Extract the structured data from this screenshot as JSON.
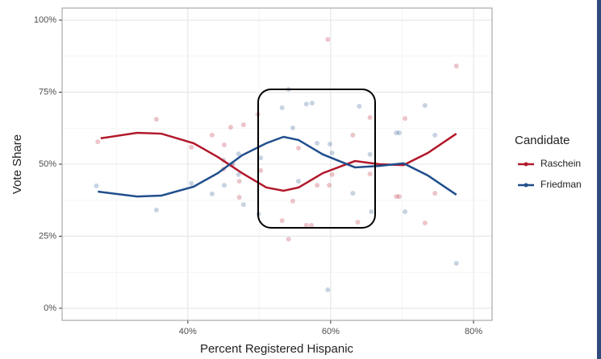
{
  "chart_data": {
    "type": "scatter",
    "x_label": "Percent Registered Hispanic",
    "y_label": "Vote Share",
    "legend_title": "Candidate",
    "legend_position": "right",
    "grid": true,
    "xlim": [
      22.4,
      82.6
    ],
    "ylim": [
      -4.2,
      104.2
    ],
    "xticks": [
      {
        "value": 40,
        "label": "40%"
      },
      {
        "value": 60,
        "label": "60%"
      },
      {
        "value": 80,
        "label": "80%"
      }
    ],
    "yticks": [
      {
        "value": 0,
        "label": "0%"
      },
      {
        "value": 25,
        "label": "25%"
      },
      {
        "value": 50,
        "label": "50%"
      },
      {
        "value": 75,
        "label": "75%"
      },
      {
        "value": 100,
        "label": "100%"
      }
    ],
    "x_minor_ticks": [
      30,
      50,
      70
    ],
    "y_minor_ticks": [
      12.5,
      37.5,
      62.5,
      87.5
    ],
    "series": [
      {
        "name": "Raschein",
        "color": "#b2182b",
        "x": [
          27.4,
          35.6,
          40.5,
          43.4,
          45.1,
          46.0,
          47.8,
          45.0,
          46.3,
          47.2,
          47.2,
          49.8,
          50.2,
          53.2,
          54.1,
          54.7,
          55.5,
          56.6,
          57.3,
          58.1,
          59.6,
          59.8,
          60.2,
          63.1,
          63.8,
          65.5,
          65.5,
          69.2,
          69.6,
          70.4,
          73.2,
          74.6,
          77.6
        ],
        "values": [
          57.8,
          65.6,
          55.9,
          60.1,
          56.7,
          62.8,
          63.7,
          48.3,
          50,
          44.1,
          38.5,
          67.3,
          47.8,
          30.4,
          24.0,
          37.2,
          55.6,
          28.8,
          28.8,
          42.7,
          93.3,
          42.7,
          46.4,
          60.1,
          29.9,
          66.2,
          46.6,
          38.8,
          38.8,
          65.9,
          29.6,
          39.9,
          84.1
        ],
        "smooth": {
          "x": [
            27.8,
            32.9,
            36.3,
            40.8,
            44.2,
            47.6,
            51,
            53.4,
            55.5,
            58.9,
            63.4,
            66.8,
            70.2,
            73.6,
            77.6
          ],
          "values": [
            59,
            60.9,
            60.6,
            57.3,
            52.5,
            46.9,
            41.9,
            40.8,
            41.9,
            46.9,
            51.1,
            50,
            49.7,
            53.9,
            60.6
          ]
        }
      },
      {
        "name": "Friedman",
        "color": "#1f4e8c",
        "x": [
          27.2,
          35.6,
          40.5,
          43.4,
          45.0,
          45.1,
          46.1,
          47.1,
          47.1,
          47.8,
          49.9,
          50.2,
          53.2,
          54.1,
          54.7,
          55.5,
          56.6,
          57.4,
          58.1,
          59.6,
          59.9,
          60.2,
          63.1,
          64.0,
          65.5,
          65.7,
          69.2,
          69.6,
          70.4,
          73.2,
          74.6,
          77.6
        ],
        "values": [
          42.5,
          34.1,
          43.3,
          39.7,
          51.4,
          42.7,
          50,
          53.6,
          46.4,
          36.0,
          32.7,
          52.2,
          69.6,
          76,
          62.6,
          44.1,
          70.9,
          71.2,
          57.3,
          6.4,
          57,
          53.9,
          39.9,
          70.1,
          53.4,
          33.5,
          60.9,
          60.9,
          33.5,
          70.4,
          60.1,
          15.6
        ],
        "smooth": {
          "x": [
            27.4,
            32.9,
            36.3,
            40.8,
            44.2,
            47.6,
            51,
            53.4,
            55.5,
            58.9,
            63.4,
            66.8,
            70.2,
            73.6,
            77.6
          ],
          "values": [
            40.5,
            38.8,
            39.1,
            42.2,
            46.9,
            53.1,
            57.3,
            59.5,
            58.4,
            53.4,
            48.9,
            49.4,
            50.3,
            46.1,
            39.4
          ]
        }
      }
    ]
  }
}
